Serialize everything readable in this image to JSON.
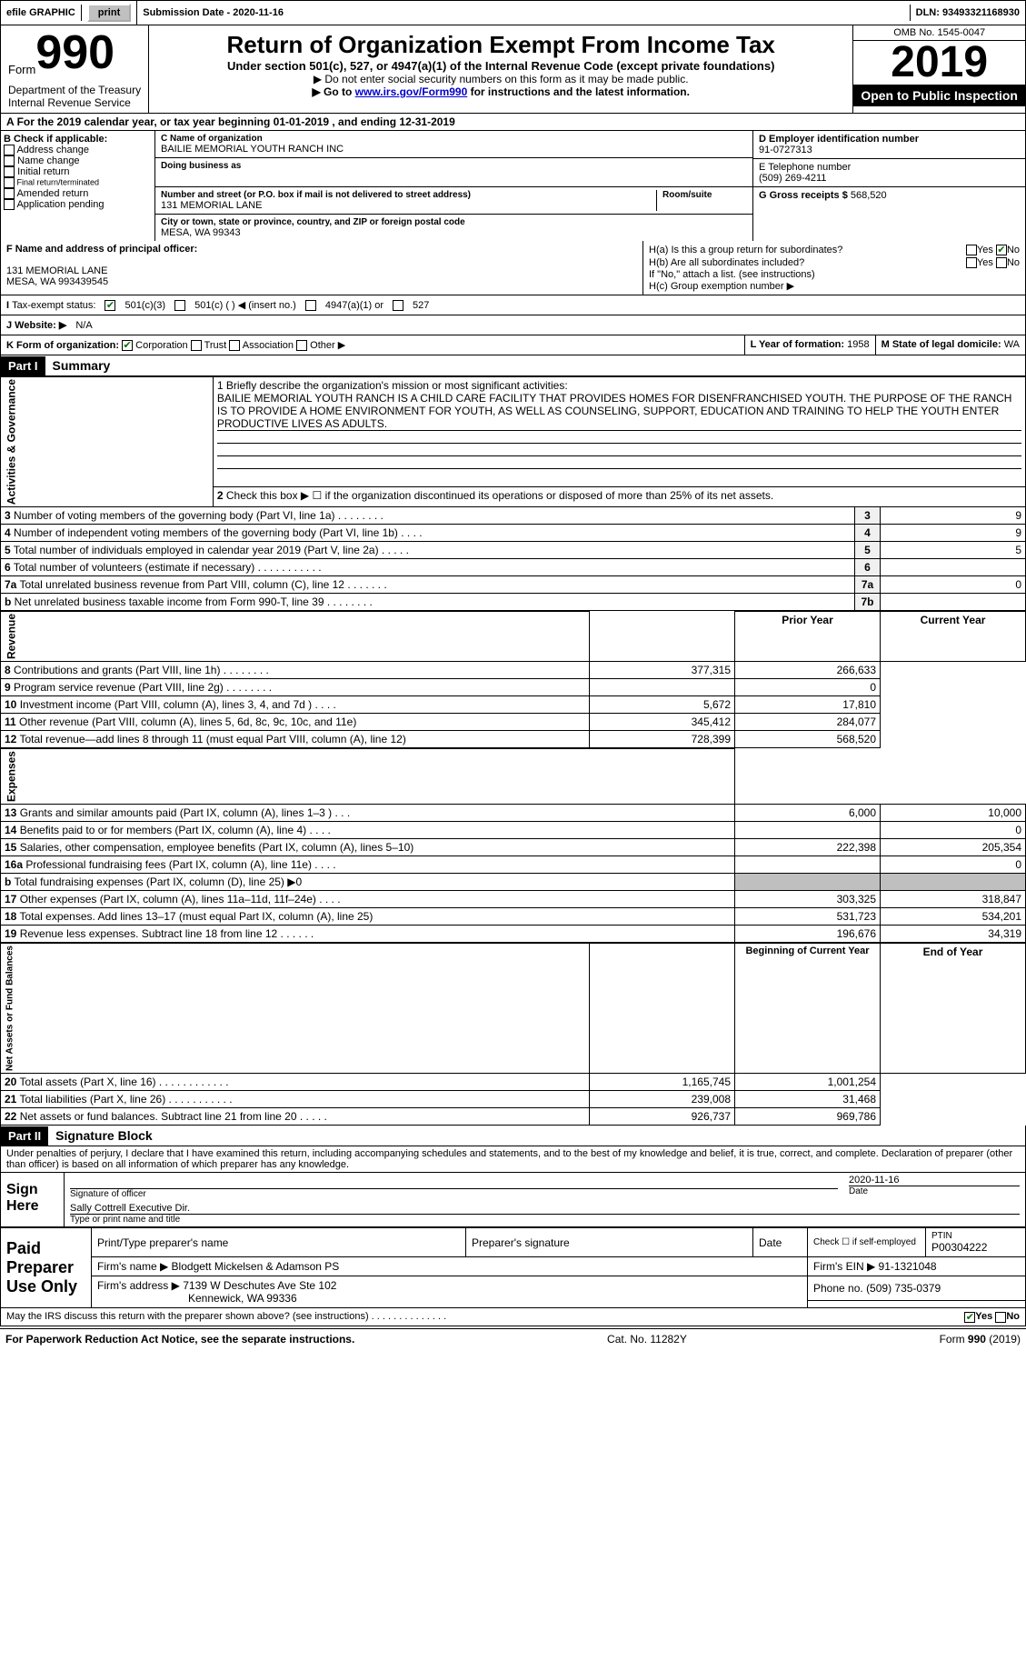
{
  "topbar": {
    "efile": "efile GRAPHIC",
    "print": "print",
    "sub_label": "Submission Date - ",
    "sub_date": "2020-11-16",
    "dln_label": "DLN: ",
    "dln": "93493321168930"
  },
  "header": {
    "form_word": "Form",
    "form_num": "990",
    "title": "Return of Organization Exempt From Income Tax",
    "sub": "Under section 501(c), 527, or 4947(a)(1) of the Internal Revenue Code (except private foundations)",
    "note1": "▶ Do not enter social security numbers on this form as it may be made public.",
    "note2a": "▶ Go to ",
    "note2_link": "www.irs.gov/Form990",
    "note2b": " for instructions and the latest information.",
    "omb": "OMB No. 1545-0047",
    "year": "2019",
    "open": "Open to Public Inspection",
    "dept": "Department of the Treasury\nInternal Revenue Service"
  },
  "a_line": "For the 2019 calendar year, or tax year beginning 01-01-2019   , and ending 12-31-2019",
  "section_b": {
    "hdr": "B Check if applicable:",
    "opts": [
      "Address change",
      "Name change",
      "Initial return",
      "Final return/terminated",
      "Amended return",
      "Application pending"
    ]
  },
  "section_c": {
    "name_lbl": "C Name of organization",
    "name": "BAILIE MEMORIAL YOUTH RANCH INC",
    "dba_lbl": "Doing business as",
    "addr_lbl": "Number and street (or P.O. box if mail is not delivered to street address)",
    "room_lbl": "Room/suite",
    "addr": "131 MEMORIAL LANE",
    "city_lbl": "City or town, state or province, country, and ZIP or foreign postal code",
    "city": "MESA, WA  99343"
  },
  "section_d": {
    "lbl": "D Employer identification number",
    "val": "91-0727313"
  },
  "section_e": {
    "lbl": "E Telephone number",
    "val": "(509) 269-4211"
  },
  "section_g": {
    "lbl": "G Gross receipts $ ",
    "val": "568,520"
  },
  "section_f": {
    "lbl": "F  Name and address of principal officer:",
    "line1": "131 MEMORIAL LANE",
    "line2": "MESA, WA  993439545"
  },
  "section_h": {
    "ha": "H(a)  Is this a group return for subordinates?",
    "hb": "H(b)  Are all subordinates included?",
    "note": "If \"No,\" attach a list. (see instructions)",
    "hc": "H(c)  Group exemption number ▶",
    "yes": "Yes",
    "no": "No"
  },
  "tax_status": {
    "lbl": "Tax-exempt status:",
    "o1": "501(c)(3)",
    "o2": "501(c) (  ) ◀ (insert no.)",
    "o3": "4947(a)(1) or",
    "o4": "527"
  },
  "website": {
    "lbl": "J    Website: ▶",
    "val": "N/A"
  },
  "section_k": {
    "lbl": "K Form of organization:",
    "o1": "Corporation",
    "o2": "Trust",
    "o3": "Association",
    "o4": "Other ▶"
  },
  "section_l": {
    "lbl": "L Year of formation: ",
    "val": "1958"
  },
  "section_m": {
    "lbl": "M State of legal domicile: ",
    "val": "WA"
  },
  "part1": {
    "hdr": "Part I",
    "title": "Summary"
  },
  "mission": {
    "prompt": "1   Briefly describe the organization's mission or most significant activities:",
    "text": "BAILIE MEMORIAL YOUTH RANCH IS A CHILD CARE FACILITY THAT PROVIDES HOMES FOR DISENFRANCHISED YOUTH. THE PURPOSE OF THE RANCH IS TO PROVIDE A HOME ENVIRONMENT FOR YOUTH, AS WELL AS COUNSELING, SUPPORT, EDUCATION AND TRAINING TO HELP THE YOUTH ENTER PRODUCTIVE LIVES AS ADULTS."
  },
  "governance": {
    "label": "Activities & Governance",
    "l2": "Check this box ▶ ☐  if the organization discontinued its operations or disposed of more than 25% of its net assets.",
    "rows": [
      {
        "n": "3",
        "t": "Number of voting members of the governing body (Part VI, line 1a)  .  .  .  .  .  .  .  .",
        "b": "3",
        "v": "9"
      },
      {
        "n": "4",
        "t": "Number of independent voting members of the governing body (Part VI, line 1b)  .  .  .  .",
        "b": "4",
        "v": "9"
      },
      {
        "n": "5",
        "t": "Total number of individuals employed in calendar year 2019 (Part V, line 2a)  .  .  .  .  .",
        "b": "5",
        "v": "5"
      },
      {
        "n": "6",
        "t": "Total number of volunteers (estimate if necessary)   .  .  .  .  .  .  .  .  .  .  .",
        "b": "6",
        "v": ""
      },
      {
        "n": "7a",
        "t": "Total unrelated business revenue from Part VIII, column (C), line 12   .  .  .  .  .  .  .",
        "b": "7a",
        "v": "0"
      },
      {
        "n": "b",
        "t": "Net unrelated business taxable income from Form 990-T, line 39  .  .  .  .  .  .  .  .",
        "b": "7b",
        "v": ""
      }
    ]
  },
  "pycy_hdr": {
    "py": "Prior Year",
    "cy": "Current Year"
  },
  "revenue": {
    "label": "Revenue",
    "rows": [
      {
        "n": "8",
        "t": "Contributions and grants (Part VIII, line 1h)   .  .  .  .  .  .  .  .",
        "p": "377,315",
        "c": "266,633"
      },
      {
        "n": "9",
        "t": "Program service revenue (Part VIII, line 2g)   .  .  .  .  .  .  .  .",
        "p": "",
        "c": "0"
      },
      {
        "n": "10",
        "t": "Investment income (Part VIII, column (A), lines 3, 4, and 7d )   .  .  .  .",
        "p": "5,672",
        "c": "17,810"
      },
      {
        "n": "11",
        "t": "Other revenue (Part VIII, column (A), lines 5, 6d, 8c, 9c, 10c, and 11e)",
        "p": "345,412",
        "c": "284,077"
      },
      {
        "n": "12",
        "t": "Total revenue—add lines 8 through 11 (must equal Part VIII, column (A), line 12)",
        "p": "728,399",
        "c": "568,520"
      }
    ]
  },
  "expenses": {
    "label": "Expenses",
    "rows": [
      {
        "n": "13",
        "t": "Grants and similar amounts paid (Part IX, column (A), lines 1–3 )  .  .  .",
        "p": "6,000",
        "c": "10,000"
      },
      {
        "n": "14",
        "t": "Benefits paid to or for members (Part IX, column (A), line 4)  .  .  .  .",
        "p": "",
        "c": "0"
      },
      {
        "n": "15",
        "t": "Salaries, other compensation, employee benefits (Part IX, column (A), lines 5–10)",
        "p": "222,398",
        "c": "205,354"
      },
      {
        "n": "16a",
        "t": "Professional fundraising fees (Part IX, column (A), line 11e)   .  .  .  .",
        "p": "",
        "c": "0"
      },
      {
        "n": "b",
        "t": "Total fundraising expenses (Part IX, column (D), line 25) ▶0",
        "p": "shaded",
        "c": "shaded"
      },
      {
        "n": "17",
        "t": "Other expenses (Part IX, column (A), lines 11a–11d, 11f–24e)  .  .  .  .",
        "p": "303,325",
        "c": "318,847"
      },
      {
        "n": "18",
        "t": "Total expenses. Add lines 13–17 (must equal Part IX, column (A), line 25)",
        "p": "531,723",
        "c": "534,201"
      },
      {
        "n": "19",
        "t": "Revenue less expenses. Subtract line 18 from line 12  .  .  .  .  .  .",
        "p": "196,676",
        "c": "34,319"
      }
    ]
  },
  "netassets": {
    "label": "Net Assets or Fund Balances",
    "hdr_b": "Beginning of Current Year",
    "hdr_e": "End of Year",
    "rows": [
      {
        "n": "20",
        "t": "Total assets (Part X, line 16)  .  .  .  .  .  .  .  .  .  .  .  .",
        "p": "1,165,745",
        "c": "1,001,254"
      },
      {
        "n": "21",
        "t": "Total liabilities (Part X, line 26)  .  .  .  .  .  .  .  .  .  .  .",
        "p": "239,008",
        "c": "31,468"
      },
      {
        "n": "22",
        "t": "Net assets or fund balances. Subtract line 21 from line 20  .  .  .  .  .",
        "p": "926,737",
        "c": "969,786"
      }
    ]
  },
  "part2": {
    "hdr": "Part II",
    "title": "Signature Block"
  },
  "sig": {
    "penalty": "Under penalties of perjury, I declare that I have examined this return, including accompanying schedules and statements, and to the best of my knowledge and belief, it is true, correct, and complete. Declaration of preparer (other than officer) is based on all information of which preparer has any knowledge.",
    "sign_here": "Sign Here",
    "officer_lbl": "Signature of officer",
    "date_lbl": "Date",
    "date": "2020-11-16",
    "name": "Sally Cottrell Executive Dir.",
    "name_lbl": "Type or print name and title"
  },
  "preparer": {
    "hdr": "Paid Preparer Use Only",
    "h_name": "Print/Type preparer's name",
    "h_sig": "Preparer's signature",
    "h_date": "Date",
    "h_check": "Check ☐ if self-employed",
    "h_ptin": "PTIN",
    "ptin": "P00304222",
    "firm_name_lbl": "Firm's name      ▶",
    "firm_name": "Blodgett Mickelsen & Adamson PS",
    "firm_ein_lbl": "Firm's EIN ▶",
    "firm_ein": "91-1321048",
    "firm_addr_lbl": "Firm's address ▶",
    "firm_addr1": "7139 W Deschutes Ave Ste 102",
    "firm_addr2": "Kennewick, WA  99336",
    "phone_lbl": "Phone no. ",
    "phone": "(509) 735-0379",
    "discuss": "May the IRS discuss this return with the preparer shown above? (see instructions)   .  .  .  .  .  .  .  .  .  .  .  .  .  .",
    "yes": "Yes",
    "no": "No"
  },
  "footer": {
    "left": "For Paperwork Reduction Act Notice, see the separate instructions.",
    "mid": "Cat. No. 11282Y",
    "right": "Form 990 (2019)"
  }
}
